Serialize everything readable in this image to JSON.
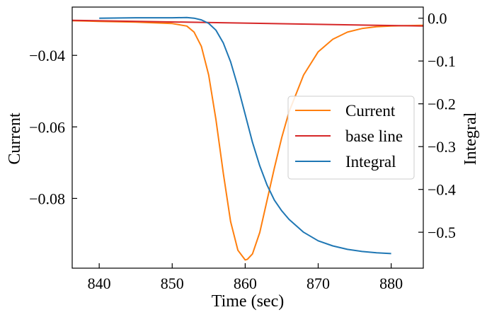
{
  "chart_data": {
    "type": "line",
    "title": "",
    "xlabel": "Time (sec)",
    "ylabel_left": "Current",
    "ylabel_right": "Integral",
    "xlim": [
      836.3,
      884.4
    ],
    "ylim_left": [
      -0.0995,
      -0.0265
    ],
    "ylim_right": [
      -0.584,
      0.026
    ],
    "x_ticks": [
      840,
      850,
      860,
      870,
      880
    ],
    "y_left_ticks": [
      -0.04,
      -0.06,
      -0.08
    ],
    "y_left_tick_labels": [
      "−0.04",
      "−0.06",
      "−0.08"
    ],
    "y_right_ticks": [
      0.0,
      -0.1,
      -0.2,
      -0.3,
      -0.4,
      -0.5
    ],
    "y_right_tick_labels": [
      "0.0",
      "−0.1",
      "−0.2",
      "−0.3",
      "−0.4",
      "−0.5"
    ],
    "legend_position": "center-right",
    "grid": false,
    "series": [
      {
        "name": "Current",
        "axis": "left",
        "color": "#ff7f0e",
        "x": [
          836.3,
          840,
          845,
          850,
          852,
          853,
          854,
          855,
          856,
          857,
          858,
          859,
          860,
          860.3,
          861,
          862,
          863,
          864,
          865,
          866,
          868,
          870,
          872,
          874,
          876,
          878,
          880,
          882,
          884.4
        ],
        "y": [
          -0.0303,
          -0.0305,
          -0.0307,
          -0.0311,
          -0.0318,
          -0.0335,
          -0.0375,
          -0.0455,
          -0.058,
          -0.073,
          -0.0865,
          -0.0945,
          -0.0972,
          -0.097,
          -0.0955,
          -0.0895,
          -0.0805,
          -0.0715,
          -0.063,
          -0.0558,
          -0.0455,
          -0.039,
          -0.0355,
          -0.0335,
          -0.0325,
          -0.032,
          -0.0318,
          -0.0317,
          -0.0316
        ]
      },
      {
        "name": "base line",
        "axis": "left",
        "color": "#d62728",
        "x": [
          836.3,
          884.4
        ],
        "y": [
          -0.0302,
          -0.0318
        ]
      },
      {
        "name": "Integral",
        "axis": "right",
        "color": "#1f77b4",
        "x": [
          840,
          845,
          850,
          852,
          853,
          854,
          855,
          856,
          857,
          858,
          859,
          860,
          861,
          862,
          863,
          864,
          865,
          866,
          868,
          870,
          872,
          874,
          876,
          878,
          880
        ],
        "y": [
          0.0,
          0.001,
          0.001,
          0.0015,
          0.0,
          -0.004,
          -0.012,
          -0.028,
          -0.058,
          -0.102,
          -0.16,
          -0.225,
          -0.29,
          -0.345,
          -0.39,
          -0.425,
          -0.45,
          -0.47,
          -0.5,
          -0.52,
          -0.532,
          -0.54,
          -0.545,
          -0.548,
          -0.55
        ]
      }
    ]
  }
}
